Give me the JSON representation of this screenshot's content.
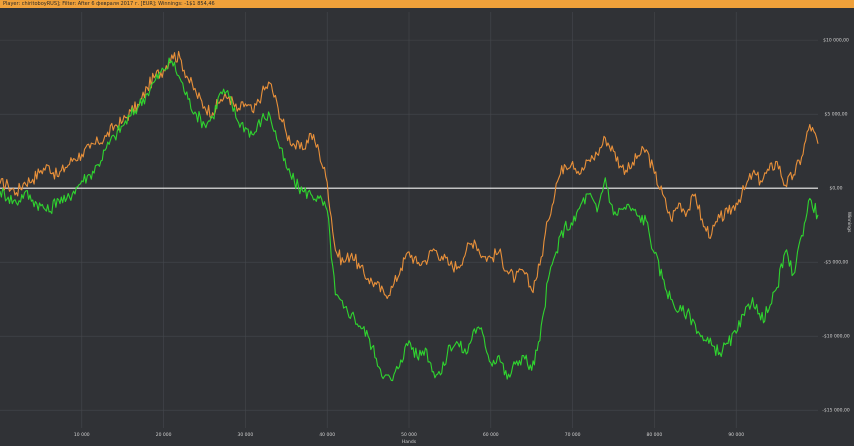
{
  "window": {
    "title": "Player: chiritoboyRUS]; Filter: After 6 февраля 2017 г. [EUR]; Winnings: -1$1 854,46"
  },
  "chart_data": {
    "type": "line",
    "title": "",
    "xlabel": "Hands",
    "ylabel": "Winnings",
    "xlim": [
      0,
      100000
    ],
    "ylim": [
      -12500,
      10000
    ],
    "x_ticks": [
      10000,
      20000,
      30000,
      40000,
      50000,
      60000,
      70000,
      80000,
      90000
    ],
    "x_tick_labels": [
      "10 000",
      "20 000",
      "30 000",
      "40 000",
      "50 000",
      "60 000",
      "70 000",
      "80 000",
      "90 000"
    ],
    "y_ticks": [
      10000,
      5000,
      0,
      -5000,
      -10000,
      -15000
    ],
    "y_tick_labels": [
      "$10 000,00",
      "$5 000,00",
      "$0,00",
      "-$5 000,00",
      "-$10 000,00",
      "-$15 000,00"
    ],
    "grid": true,
    "zero_line": true,
    "colors": {
      "background": "#303236",
      "grid": "#45484d",
      "zero_line": "#f2f2f2",
      "series_1": "#e8903a",
      "series_2": "#2fd42f",
      "header": "#f0a13a"
    },
    "series": [
      {
        "color": "#e8903a",
        "x": [
          0,
          1000,
          2000,
          3000,
          4000,
          5000,
          6000,
          7000,
          8000,
          9000,
          10000,
          11000,
          12000,
          13000,
          14000,
          15000,
          16000,
          17000,
          18000,
          19000,
          20000,
          21000,
          22000,
          23000,
          24000,
          25000,
          26000,
          27000,
          28000,
          29000,
          30000,
          31000,
          32000,
          33000,
          34000,
          35000,
          36000,
          37000,
          38000,
          39000,
          40000,
          41000,
          42000,
          43000,
          44000,
          45000,
          46000,
          47000,
          48000,
          49000,
          50000,
          51000,
          52000,
          53000,
          54000,
          55000,
          56000,
          57000,
          58000,
          59000,
          60000,
          61000,
          62000,
          63000,
          64000,
          65000,
          66000,
          67000,
          68000,
          69000,
          70000,
          71000,
          72000,
          73000,
          74000,
          75000,
          76000,
          77000,
          78000,
          79000,
          80000,
          81000,
          82000,
          83000,
          84000,
          85000,
          86000,
          87000,
          88000,
          89000,
          90000,
          91000,
          92000,
          93000,
          94000,
          95000,
          96000,
          97000,
          98000,
          99000,
          100000
        ],
        "values": [
          300,
          200,
          -300,
          400,
          600,
          1200,
          1500,
          800,
          1400,
          2000,
          2300,
          2700,
          3100,
          3500,
          4200,
          4500,
          5200,
          5600,
          6800,
          7600,
          8000,
          9000,
          8800,
          7400,
          6400,
          5500,
          5100,
          6000,
          6200,
          5200,
          5700,
          5100,
          6400,
          7100,
          5400,
          3700,
          2900,
          2600,
          3700,
          2500,
          400,
          -4200,
          -5000,
          -4400,
          -5400,
          -6100,
          -6500,
          -7200,
          -6700,
          -5400,
          -4300,
          -5100,
          -4900,
          -4100,
          -4600,
          -5200,
          -5300,
          -4200,
          -3500,
          -4600,
          -4700,
          -4300,
          -5600,
          -6100,
          -5600,
          -6900,
          -5200,
          -2200,
          300,
          1600,
          1800,
          1000,
          1900,
          2300,
          3400,
          2500,
          1400,
          1300,
          2200,
          2600,
          1000,
          -400,
          -2100,
          -1000,
          -1600,
          -400,
          -2600,
          -3100,
          -2000,
          -1700,
          -1000,
          -100,
          1000,
          500,
          1200,
          1800,
          200,
          900,
          2100,
          4300,
          3000
        ],
        "name": ""
      },
      {
        "color": "#2fd42f",
        "x": [
          0,
          1000,
          2000,
          3000,
          4000,
          5000,
          6000,
          7000,
          8000,
          9000,
          10000,
          11000,
          12000,
          13000,
          14000,
          15000,
          16000,
          17000,
          18000,
          19000,
          20000,
          21000,
          22000,
          23000,
          24000,
          25000,
          26000,
          27000,
          28000,
          29000,
          30000,
          31000,
          32000,
          33000,
          34000,
          35000,
          36000,
          37000,
          38000,
          39000,
          40000,
          41000,
          42000,
          43000,
          44000,
          45000,
          46000,
          47000,
          48000,
          49000,
          50000,
          51000,
          52000,
          53000,
          54000,
          55000,
          56000,
          57000,
          58000,
          59000,
          60000,
          61000,
          62000,
          63000,
          64000,
          65000,
          66000,
          67000,
          68000,
          69000,
          70000,
          71000,
          72000,
          73000,
          74000,
          75000,
          76000,
          77000,
          78000,
          79000,
          80000,
          81000,
          82000,
          83000,
          84000,
          85000,
          86000,
          87000,
          88000,
          89000,
          90000,
          91000,
          92000,
          93000,
          94000,
          95000,
          96000,
          97000,
          98000,
          99000,
          100000
        ],
        "values": [
          -200,
          -600,
          -1000,
          -300,
          -800,
          -1200,
          -1600,
          -700,
          -900,
          -200,
          500,
          900,
          1600,
          2700,
          3500,
          4200,
          4900,
          5600,
          6400,
          7300,
          8000,
          8600,
          7400,
          6000,
          5000,
          4300,
          4800,
          6500,
          6200,
          4600,
          4100,
          3600,
          4700,
          4900,
          3100,
          1400,
          400,
          -200,
          -400,
          -700,
          -1500,
          -7200,
          -8100,
          -8500,
          -9300,
          -10000,
          -11500,
          -12700,
          -13000,
          -11600,
          -10300,
          -11400,
          -10800,
          -12400,
          -12500,
          -10600,
          -10500,
          -11200,
          -9500,
          -9800,
          -11800,
          -11300,
          -12900,
          -11900,
          -11300,
          -12300,
          -10300,
          -6200,
          -4300,
          -2600,
          -2500,
          -1100,
          -400,
          -1600,
          700,
          -1800,
          -1400,
          -1300,
          -1900,
          -2200,
          -4400,
          -6100,
          -7500,
          -8300,
          -8400,
          -9200,
          -10300,
          -10600,
          -11100,
          -10500,
          -9800,
          -8600,
          -7400,
          -8900,
          -8200,
          -6700,
          -4300,
          -5800,
          -3200,
          -700,
          -1800
        ],
        "name": ""
      }
    ]
  }
}
